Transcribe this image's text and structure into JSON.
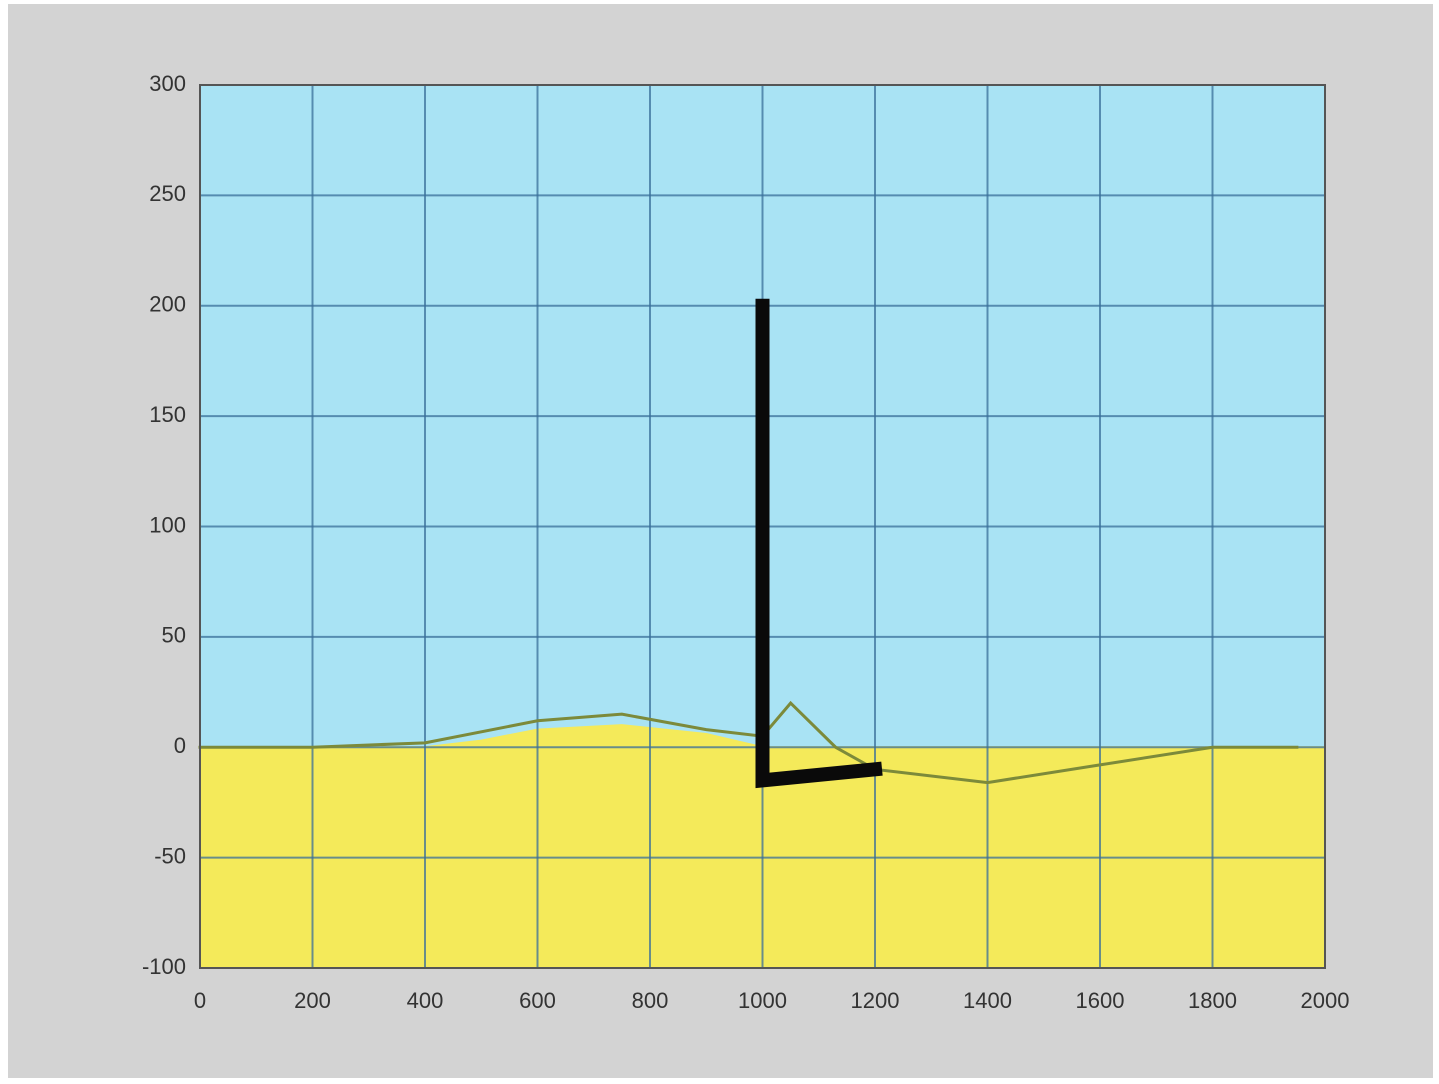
{
  "chart_data": {
    "type": "line",
    "xlim": [
      0,
      2000
    ],
    "xticks": [
      0,
      200,
      400,
      600,
      800,
      1000,
      1200,
      1400,
      1600,
      1800,
      2000
    ],
    "ylim": [
      -100,
      300
    ],
    "yticks": [
      -100,
      -50,
      0,
      50,
      100,
      150,
      200,
      250,
      300
    ],
    "grid": true,
    "background": "#a9e3f4",
    "series": [
      {
        "color": "#f4ea5a",
        "fill": true,
        "width": 2,
        "x": [
          0,
          200,
          400,
          500,
          600,
          750,
          900,
          1000,
          1200,
          1400,
          1600,
          1800,
          2000
        ],
        "values": [
          0,
          0,
          0,
          3,
          8,
          10,
          6,
          0,
          0,
          0,
          0,
          0,
          0
        ]
      },
      {
        "color": "#7c8a3a",
        "fill": false,
        "width": 3,
        "x": [
          0,
          200,
          400,
          600,
          750,
          900,
          1000,
          1050,
          1130,
          1200,
          1400,
          1600,
          1800,
          1950
        ],
        "values": [
          0,
          0,
          2,
          12,
          15,
          8,
          5,
          20,
          0,
          -10,
          -16,
          -8,
          0,
          0
        ]
      },
      {
        "color": "#0a0a0a",
        "fill": false,
        "width": 14,
        "x": [
          1000,
          1000,
          1200
        ],
        "values": [
          200,
          -15,
          -10
        ]
      }
    ]
  }
}
